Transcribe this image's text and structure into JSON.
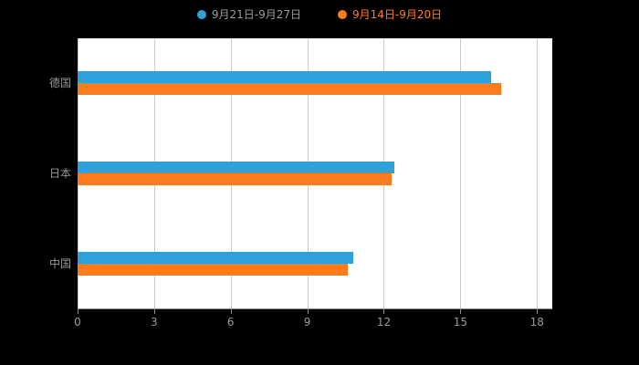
{
  "page": {
    "background": "#000000"
  },
  "legend": {
    "items": [
      {
        "label": "9月21日-9月27日",
        "marker_color": "#2FA1DA",
        "label_color": "#9B9B9B"
      },
      {
        "label": "9月14日-9月20日",
        "marker_color": "#FC7B1E",
        "label_color": "#FC7B1E"
      }
    ]
  },
  "chart_data": {
    "type": "bar",
    "orientation": "horizontal",
    "title": "",
    "categories": [
      "德国",
      "日本",
      "中国"
    ],
    "series": [
      {
        "name": "9月21日-9月27日",
        "color": "#2FA1DA",
        "values": [
          16.2,
          12.4,
          10.8
        ]
      },
      {
        "name": "9月14日-9月20日",
        "color": "#FC7B1E",
        "values": [
          16.6,
          12.3,
          10.6
        ]
      }
    ],
    "xlim": [
      0,
      18.6
    ],
    "xticks": [
      0,
      3,
      6,
      9,
      12,
      15,
      18
    ],
    "grid": true,
    "legend_position": "top",
    "plot_background": "#ffffff",
    "gridline_color": "#cccccc",
    "axis_line_color": "#8c8c8c",
    "axis_label_color": "#999999"
  }
}
